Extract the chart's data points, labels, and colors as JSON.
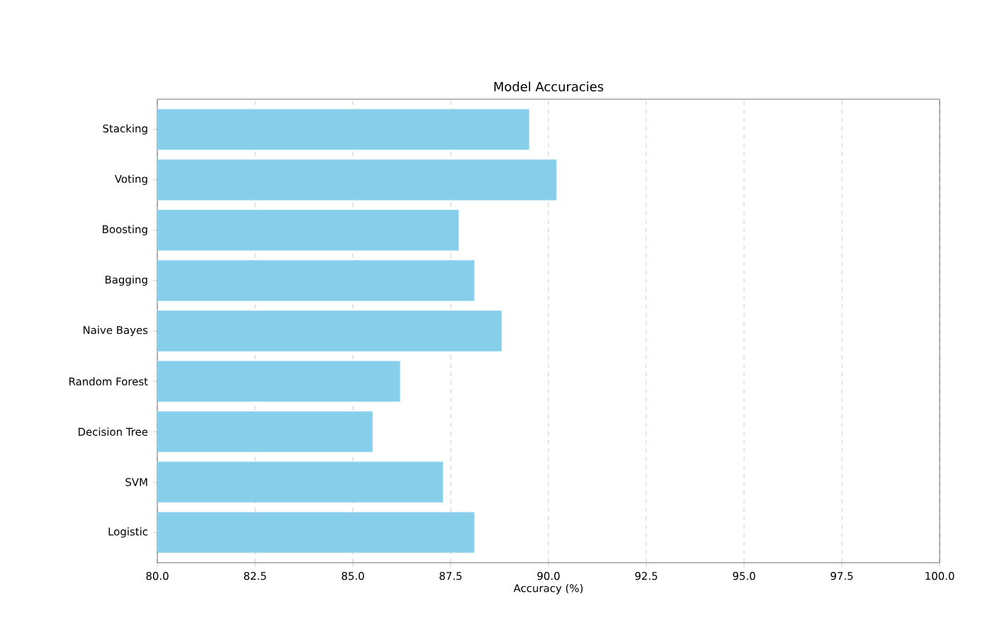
{
  "chart_data": {
    "type": "bar",
    "orientation": "horizontal",
    "title": "Model Accuracies",
    "xlabel": "Accuracy (%)",
    "categories": [
      "Stacking",
      "Voting",
      "Boosting",
      "Bagging",
      "Naive Bayes",
      "Random Forest",
      "Decision Tree",
      "SVM",
      "Logistic"
    ],
    "values": [
      89.5,
      90.2,
      87.7,
      88.1,
      88.8,
      86.2,
      85.5,
      87.3,
      88.1
    ],
    "color": "#87ceeb",
    "xlim": [
      80,
      100
    ],
    "xticks": [
      {
        "value": 80,
        "label": "80.0"
      },
      82.5,
      {
        "value": 85,
        "label": "85.0"
      },
      87.5,
      {
        "value": 90,
        "label": "90.0"
      },
      92.5,
      {
        "value": 95,
        "label": "95.0"
      },
      97.5,
      {
        "value": 100,
        "label": "100.0"
      }
    ],
    "grid": "x"
  }
}
